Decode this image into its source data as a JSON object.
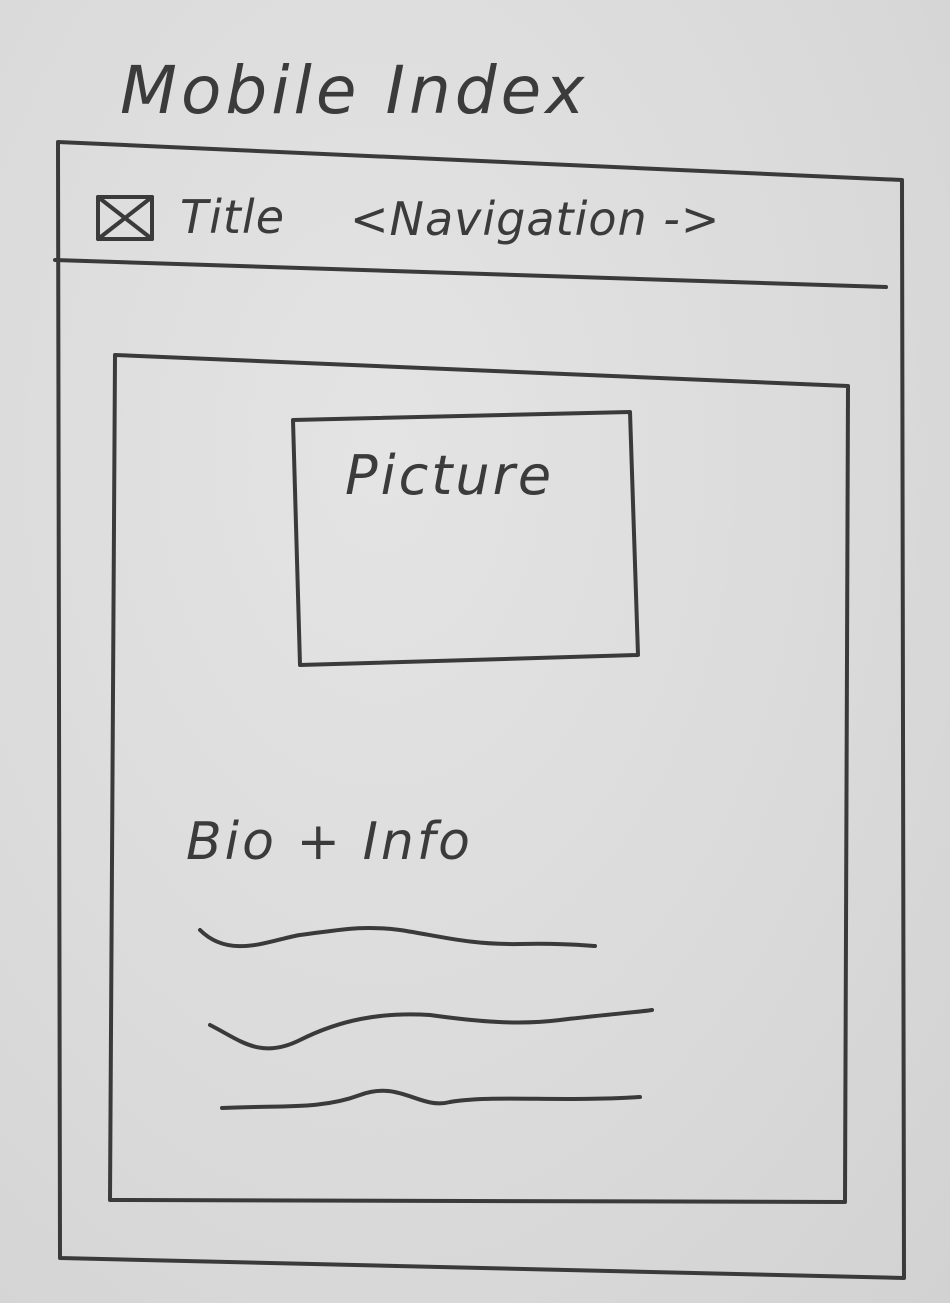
{
  "page": {
    "title": "Mobile Index"
  },
  "header": {
    "title": "Title",
    "navigation": "<Navigation ->"
  },
  "content": {
    "picture_label": "Picture",
    "bio_heading": "Bio + Info",
    "text_lines": 3
  },
  "colors": {
    "paper": "#dcdcdc",
    "ink": "#3a3a3a"
  },
  "icons": {
    "logo": "image-placeholder-icon"
  }
}
